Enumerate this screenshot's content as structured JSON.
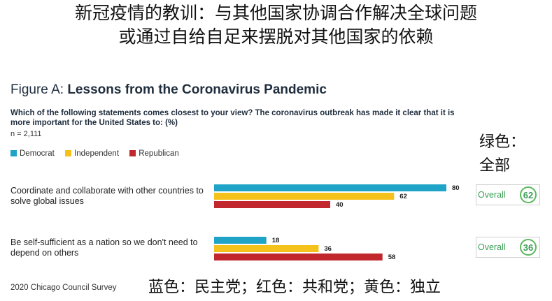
{
  "cn_title_line1": "新冠疫情的教训：与其他国家协调合作解决全球问题",
  "cn_title_line2": "或通过自给自足来摆脱对其他国家的依赖",
  "figure_label": "Figure A:",
  "figure_title": "Lessons from the Coronavirus Pandemic",
  "question": "Which of the following statements comes closest to your view? The coronavirus outbreak has made it clear that it is more important for the United States to: (%)",
  "sample_size": "n = 2,111",
  "note_green_1": "绿色：",
  "note_green_2": "全部",
  "note_bottom": "蓝色：民主党；红色：共和党；黄色：独立",
  "source": "2020 Chicago Council Survey",
  "overall_label": "Overall",
  "colors": {
    "Democrat": "#1fa3c6",
    "Independent": "#f5c21b",
    "Republican": "#c1272d",
    "overall": "#5cb85c"
  },
  "chart_data": {
    "type": "bar",
    "orientation": "horizontal",
    "categories": [
      "Coordinate and collaborate with other countries to solve global issues",
      "Be self-sufficient as a nation so we don't need to depend on others"
    ],
    "series": [
      {
        "name": "Democrat",
        "values": [
          80,
          18
        ]
      },
      {
        "name": "Independent",
        "values": [
          62,
          36
        ]
      },
      {
        "name": "Republican",
        "values": [
          40,
          58
        ]
      }
    ],
    "overall": [
      62,
      36
    ],
    "xlim": [
      0,
      100
    ],
    "grid": false,
    "legend_position": "top-left"
  }
}
